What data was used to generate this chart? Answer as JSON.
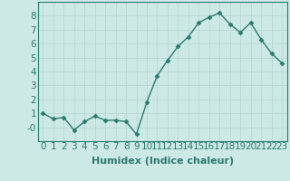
{
  "x": [
    0,
    1,
    2,
    3,
    4,
    5,
    6,
    7,
    8,
    9,
    10,
    11,
    12,
    13,
    14,
    15,
    16,
    17,
    18,
    19,
    20,
    21,
    22,
    23
  ],
  "y": [
    1.0,
    0.6,
    0.7,
    -0.2,
    0.4,
    0.8,
    0.5,
    0.5,
    0.4,
    -0.5,
    1.8,
    3.7,
    4.8,
    5.8,
    6.5,
    7.5,
    7.9,
    8.2,
    7.4,
    6.8,
    7.5,
    6.3,
    5.3,
    4.6
  ],
  "line_color": "#2d7a6e",
  "marker": "D",
  "marker_size": 2.5,
  "bg_color": "#cce9e5",
  "grid_color": "#b8d8d4",
  "xlabel": "Humidex (Indice chaleur)",
  "ylim": [
    -1,
    9
  ],
  "xlim": [
    -0.5,
    23.5
  ],
  "yticks": [
    0,
    1,
    2,
    3,
    4,
    5,
    6,
    7,
    8
  ],
  "ytick_labels": [
    "-0",
    "1",
    "2",
    "3",
    "4",
    "5",
    "6",
    "7",
    "8"
  ],
  "xticks": [
    0,
    1,
    2,
    3,
    4,
    5,
    6,
    7,
    8,
    9,
    10,
    11,
    12,
    13,
    14,
    15,
    16,
    17,
    18,
    19,
    20,
    21,
    22,
    23
  ],
  "xlabel_fontsize": 8,
  "tick_fontsize": 7.5,
  "label_color": "#2d7a6e",
  "line_width": 1.0,
  "spine_color": "#2d7a6e"
}
